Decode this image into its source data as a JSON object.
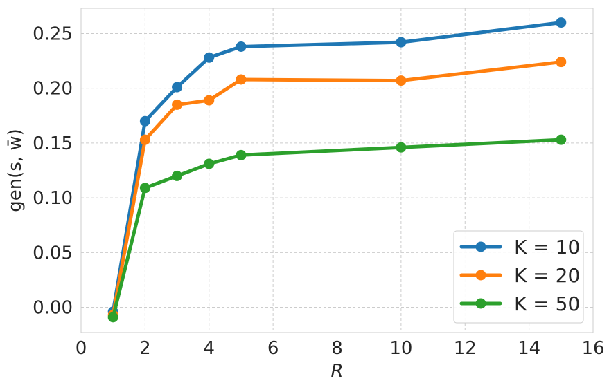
{
  "chart_data": {
    "type": "line",
    "xlabel": "R",
    "ylabel": "gen(s, w̄)",
    "xlim": [
      0,
      16
    ],
    "ylim": [
      -0.023,
      0.273
    ],
    "x_ticks": [
      0,
      2,
      4,
      6,
      8,
      10,
      12,
      14,
      16
    ],
    "x_tick_labels": [
      "0",
      "2",
      "4",
      "6",
      "8",
      "10",
      "12",
      "14",
      "16"
    ],
    "y_ticks": [
      0.0,
      0.05,
      0.1,
      0.15,
      0.2,
      0.25
    ],
    "y_tick_labels": [
      "0.00",
      "0.05",
      "0.10",
      "0.15",
      "0.20",
      "0.25"
    ],
    "grid": true,
    "legend_position": "bottom-right",
    "x": [
      1,
      2,
      3,
      4,
      5,
      10,
      15
    ],
    "series": [
      {
        "name": "K = 10",
        "color": "#1f77b4",
        "values": [
          -0.004,
          0.17,
          0.201,
          0.228,
          0.238,
          0.242,
          0.26
        ]
      },
      {
        "name": "K = 20",
        "color": "#ff7f0e",
        "values": [
          -0.007,
          0.153,
          0.185,
          0.189,
          0.208,
          0.207,
          0.224
        ]
      },
      {
        "name": "K = 50",
        "color": "#2ca02c",
        "values": [
          -0.009,
          0.109,
          0.12,
          0.131,
          0.139,
          0.146,
          0.153
        ]
      }
    ]
  }
}
